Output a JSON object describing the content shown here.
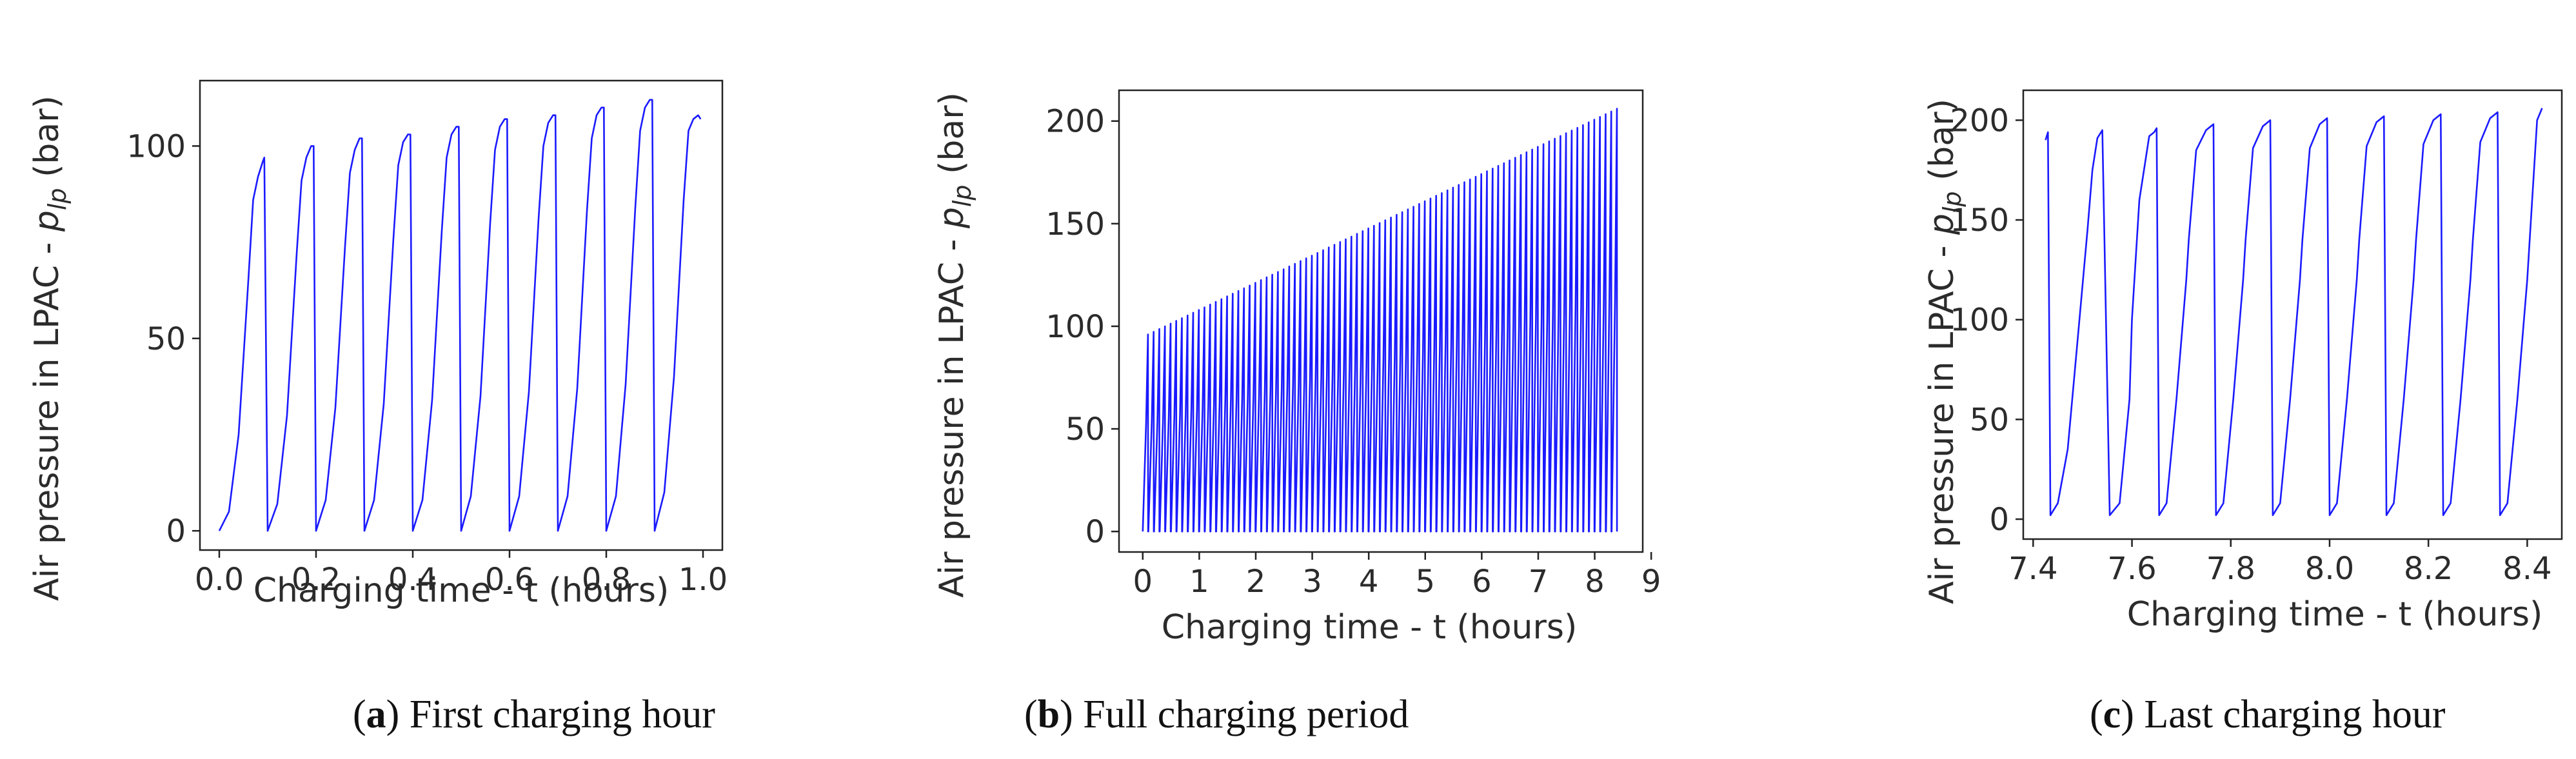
{
  "chart_data": [
    {
      "type": "line",
      "panel": "a",
      "caption": {
        "letter": "a",
        "text": "First charging hour"
      },
      "xlabel": "Charging time - t (hours)",
      "ylabel": "Air pressure in LPAC - p_lp (bar)",
      "ylabel_parts": {
        "prefix": "Air pressure in LPAC - ",
        "var": "p",
        "sub": "lp",
        "suffix": " (bar)"
      },
      "xlim": [
        -0.04,
        1.04
      ],
      "ylim": [
        -5,
        117
      ],
      "xticks": [
        0.0,
        0.2,
        0.4,
        0.6,
        0.8,
        1.0
      ],
      "xtick_labels": [
        "0.0",
        "0.2",
        "0.4",
        "0.6",
        "0.8",
        "1.0"
      ],
      "yticks": [
        0,
        50,
        100
      ],
      "ytick_labels": [
        "0",
        "50",
        "100"
      ],
      "grid": false,
      "line_color": "#1a1aff",
      "series": [
        {
          "x": [
            0.0,
            0.02,
            0.04,
            0.06,
            0.07,
            0.08,
            0.09,
            0.093,
            0.1,
            0.12,
            0.14,
            0.16,
            0.17,
            0.18,
            0.19,
            0.195,
            0.2,
            0.22,
            0.24,
            0.26,
            0.27,
            0.28,
            0.29,
            0.295,
            0.3,
            0.32,
            0.34,
            0.36,
            0.37,
            0.38,
            0.39,
            0.395,
            0.4,
            0.42,
            0.44,
            0.46,
            0.47,
            0.48,
            0.49,
            0.495,
            0.5,
            0.52,
            0.54,
            0.56,
            0.57,
            0.58,
            0.59,
            0.595,
            0.6,
            0.62,
            0.64,
            0.66,
            0.67,
            0.68,
            0.69,
            0.695,
            0.7,
            0.72,
            0.74,
            0.76,
            0.77,
            0.78,
            0.79,
            0.795,
            0.8,
            0.82,
            0.84,
            0.86,
            0.87,
            0.88,
            0.89,
            0.895,
            0.9,
            0.92,
            0.94,
            0.96,
            0.97,
            0.98,
            0.99,
            0.995
          ],
          "y": [
            0,
            5,
            25,
            65,
            86,
            92,
            96,
            97,
            0,
            7,
            30,
            72,
            91,
            97,
            100,
            100,
            0,
            8,
            32,
            74,
            93,
            99,
            102,
            102,
            0,
            8,
            33,
            76,
            95,
            101,
            103,
            103,
            0,
            8,
            34,
            78,
            97,
            103,
            105,
            105,
            0,
            9,
            35,
            80,
            99,
            105,
            107,
            107,
            0,
            9,
            36,
            81,
            100,
            106,
            108,
            108,
            0,
            9,
            37,
            83,
            102,
            108,
            110,
            110,
            0,
            9,
            38,
            84,
            104,
            110,
            112,
            112,
            0,
            10,
            40,
            86,
            104,
            107,
            108,
            107
          ]
        }
      ]
    },
    {
      "type": "line",
      "panel": "b",
      "caption": {
        "letter": "b",
        "text": "Full charging period"
      },
      "xlabel": "Charging time - t (hours)",
      "ylabel": "Air pressure in LPAC - p_lp (bar)",
      "ylabel_parts": {
        "prefix": "Air pressure in LPAC - ",
        "var": "p",
        "sub": "lp",
        "suffix": " (bar)"
      },
      "xlim": [
        -0.42,
        8.85
      ],
      "ylim": [
        -10,
        215
      ],
      "xticks": [
        0,
        1,
        2,
        3,
        4,
        5,
        6,
        7,
        8,
        9
      ],
      "xtick_labels": [
        "0",
        "1",
        "2",
        "3",
        "4",
        "5",
        "6",
        "7",
        "8",
        "9"
      ],
      "yticks": [
        0,
        50,
        100,
        150,
        200
      ],
      "ytick_labels": [
        "0",
        "50",
        "100",
        "150",
        "200"
      ],
      "grid": false,
      "line_color": "#1a1aff",
      "cycle": {
        "start": 0.0,
        "end": 8.43,
        "period_hours": 0.1,
        "peak_start": 96,
        "peak_end": 206,
        "min": 0
      }
    },
    {
      "type": "line",
      "panel": "c",
      "caption": {
        "letter": "c",
        "text": "Last charging hour"
      },
      "xlabel": "Charging time - t (hours)",
      "ylabel": "Air pressure in LPAC - p_lp (bar)",
      "ylabel_parts": {
        "prefix": "Air pressure in LPAC - ",
        "var": "p",
        "sub": "lp",
        "suffix": " (bar)"
      },
      "xlim": [
        7.38,
        8.47
      ],
      "ylim": [
        -10,
        215
      ],
      "xticks": [
        7.4,
        7.6,
        7.8,
        8.0,
        8.2,
        8.4
      ],
      "xtick_labels": [
        "7.4",
        "7.6",
        "7.8",
        "8.0",
        "8.2",
        "8.4"
      ],
      "yticks": [
        0,
        50,
        100,
        150,
        200
      ],
      "ytick_labels": [
        "0",
        "50",
        "100",
        "150",
        "200"
      ],
      "grid": false,
      "line_color": "#1a1aff",
      "series": [
        {
          "x": [
            7.425,
            7.43,
            7.435,
            7.45,
            7.47,
            7.49,
            7.51,
            7.52,
            7.53,
            7.535,
            7.54,
            7.555,
            7.575,
            7.595,
            7.6,
            7.615,
            7.635,
            7.645,
            7.65,
            7.655,
            7.67,
            7.69,
            7.71,
            7.715,
            7.73,
            7.75,
            7.76,
            7.765,
            7.77,
            7.785,
            7.805,
            7.825,
            7.83,
            7.845,
            7.865,
            7.875,
            7.88,
            7.885,
            7.9,
            7.92,
            7.94,
            7.945,
            7.96,
            7.98,
            7.99,
            7.995,
            8.0,
            8.015,
            8.035,
            8.055,
            8.06,
            8.075,
            8.095,
            8.105,
            8.11,
            8.115,
            8.13,
            8.15,
            8.17,
            8.175,
            8.19,
            8.21,
            8.22,
            8.225,
            8.23,
            8.245,
            8.265,
            8.285,
            8.29,
            8.305,
            8.325,
            8.335,
            8.34,
            8.345,
            8.36,
            8.38,
            8.4,
            8.405,
            8.42,
            8.43
          ],
          "y": [
            190,
            194,
            2,
            8,
            35,
            90,
            145,
            175,
            191,
            193,
            195,
            2,
            8,
            60,
            100,
            160,
            192,
            194,
            196,
            2,
            8,
            60,
            120,
            140,
            185,
            195,
            197,
            198,
            2,
            8,
            60,
            120,
            140,
            186,
            197,
            199,
            200,
            2,
            8,
            60,
            120,
            140,
            186,
            198,
            200,
            201,
            2,
            8,
            60,
            120,
            140,
            187,
            199,
            201,
            202,
            2,
            8,
            60,
            120,
            140,
            188,
            200,
            202,
            203,
            2,
            8,
            60,
            120,
            140,
            189,
            201,
            203,
            204,
            2,
            8,
            60,
            120,
            140,
            200,
            206
          ]
        }
      ]
    }
  ]
}
